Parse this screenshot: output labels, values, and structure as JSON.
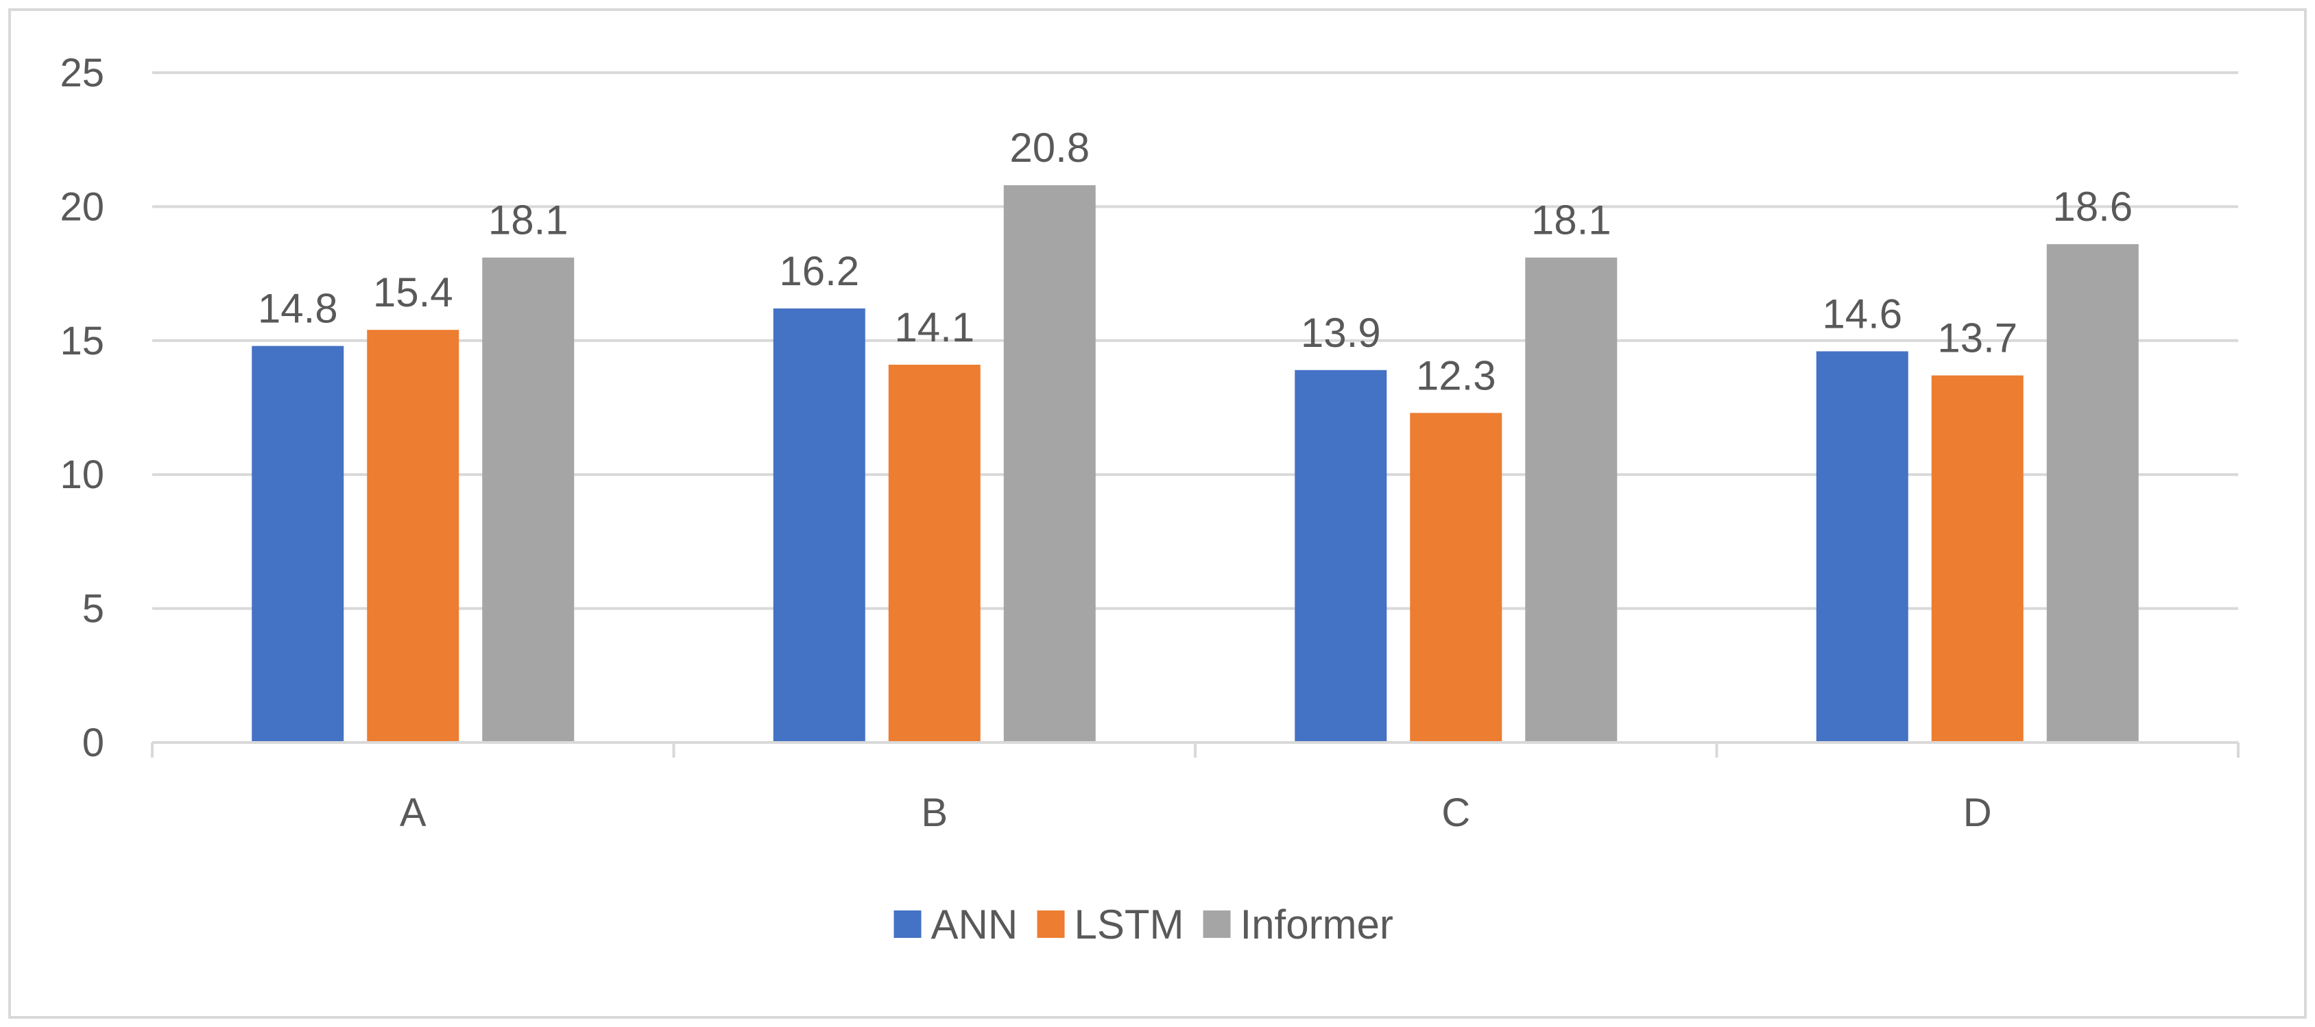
{
  "chart_data": {
    "type": "bar",
    "categories": [
      "A",
      "B",
      "C",
      "D"
    ],
    "series": [
      {
        "name": "ANN",
        "color": "#4472C4",
        "values": [
          14.8,
          16.2,
          13.9,
          14.6
        ]
      },
      {
        "name": "LSTM",
        "color": "#ED7D31",
        "values": [
          15.4,
          14.1,
          12.3,
          13.7
        ]
      },
      {
        "name": "Informer",
        "color": "#A5A5A5",
        "values": [
          18.1,
          20.8,
          18.1,
          18.6
        ]
      }
    ],
    "title": "",
    "xlabel": "",
    "ylabel": "",
    "ylim": [
      0,
      25
    ],
    "yticks": [
      0,
      5,
      10,
      15,
      20,
      25
    ],
    "grid": true,
    "legend_position": "bottom",
    "data_labels": true
  }
}
